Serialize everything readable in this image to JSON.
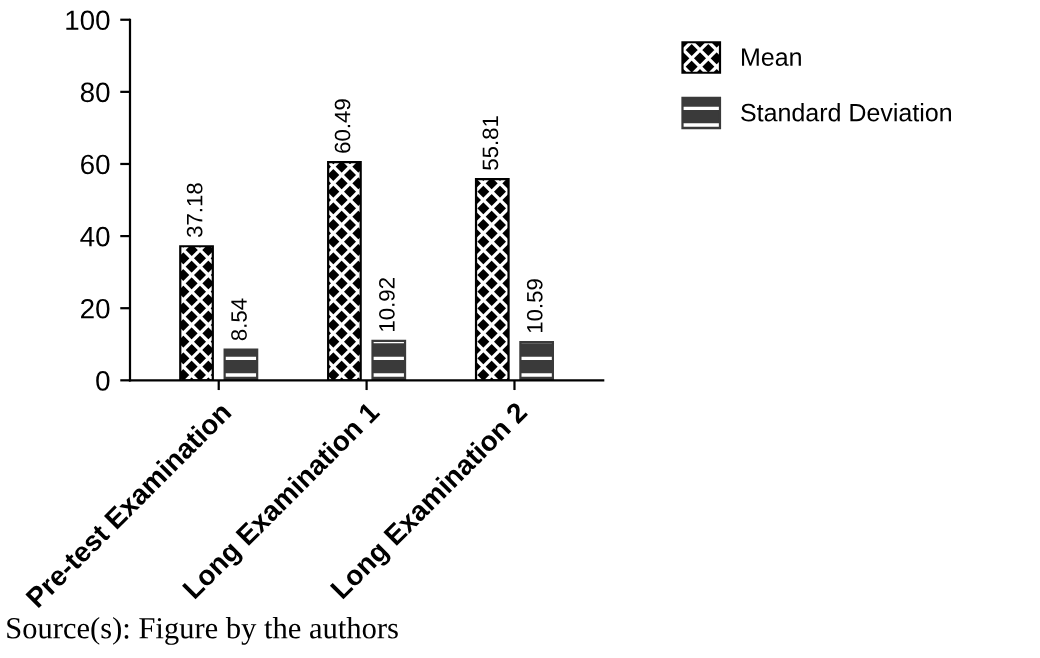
{
  "chart_data": {
    "type": "bar",
    "categories": [
      "Pre-test Examination",
      "Long Examination 1",
      "Long Examination 2"
    ],
    "series": [
      {
        "name": "Mean",
        "color": "#000000",
        "values": [
          37.18,
          60.49,
          55.81
        ]
      },
      {
        "name": "Standard Deviation",
        "color": "#3a3a3a",
        "values": [
          8.54,
          10.92,
          10.59
        ]
      }
    ],
    "ylim": [
      0,
      100
    ],
    "yticks": [
      0,
      20,
      40,
      60,
      80,
      100
    ],
    "data_labels": true,
    "legend": "top right",
    "grid": false,
    "annotations": [
      "Source(s): Figure by the authors"
    ]
  }
}
